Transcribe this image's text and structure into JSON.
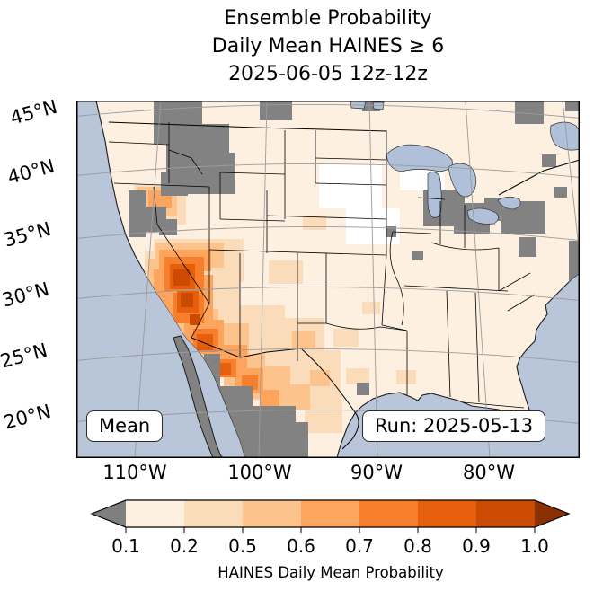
{
  "title": {
    "line1": "Ensemble Probability",
    "line2": "Daily Mean HAINES ≥ 6",
    "line3": "2025-06-05 12z-12z"
  },
  "map": {
    "lat_labels": [
      "45°N",
      "40°N",
      "35°N",
      "30°N",
      "25°N",
      "20°N"
    ],
    "lon_labels": [
      "110°W",
      "100°W",
      "90°W",
      "80°W"
    ],
    "mean_box": "Mean",
    "run_box": "Run: 2025-05-13",
    "colors": {
      "ocean": "#b9c5d9",
      "lake": "#afc0d8",
      "land": "#fdf0e1",
      "mask": "#828282",
      "gridline": "#9b9b9b"
    },
    "cells": [
      [
        86,
        154,
        100,
        48,
        2
      ],
      [
        76,
        168,
        32,
        92,
        2
      ],
      [
        100,
        198,
        82,
        88,
        2
      ],
      [
        148,
        228,
        84,
        78,
        2
      ],
      [
        180,
        268,
        78,
        66,
        2
      ],
      [
        214,
        242,
        62,
        46,
        2
      ],
      [
        236,
        278,
        58,
        58,
        2
      ],
      [
        254,
        328,
        42,
        42,
        2
      ],
      [
        64,
        94,
        58,
        44,
        2
      ],
      [
        214,
        178,
        38,
        26,
        2
      ],
      [
        286,
        254,
        28,
        20,
        2
      ],
      [
        300,
        298,
        26,
        18,
        2
      ],
      [
        252,
        128,
        26,
        16,
        2
      ],
      [
        318,
        224,
        20,
        14,
        2
      ],
      [
        356,
        300,
        22,
        16,
        2
      ],
      [
        88,
        158,
        76,
        28,
        3
      ],
      [
        80,
        176,
        26,
        58,
        3
      ],
      [
        96,
        232,
        62,
        46,
        3
      ],
      [
        140,
        248,
        52,
        44,
        3
      ],
      [
        164,
        282,
        46,
        40,
        3
      ],
      [
        196,
        296,
        42,
        36,
        3
      ],
      [
        226,
        316,
        34,
        28,
        3
      ],
      [
        68,
        96,
        44,
        32,
        3
      ],
      [
        240,
        256,
        26,
        20,
        3
      ],
      [
        260,
        300,
        22,
        18,
        3
      ],
      [
        92,
        166,
        58,
        24,
        4
      ],
      [
        86,
        188,
        22,
        44,
        4
      ],
      [
        100,
        194,
        52,
        54,
        4
      ],
      [
        120,
        244,
        44,
        38,
        4
      ],
      [
        150,
        272,
        40,
        34,
        4
      ],
      [
        176,
        298,
        32,
        28,
        4
      ],
      [
        80,
        100,
        26,
        20,
        4
      ],
      [
        204,
        322,
        22,
        18,
        4
      ],
      [
        98,
        174,
        44,
        38,
        5
      ],
      [
        108,
        214,
        34,
        34,
        5
      ],
      [
        130,
        254,
        28,
        26,
        5
      ],
      [
        154,
        288,
        24,
        20,
        5
      ],
      [
        184,
        306,
        18,
        16,
        5
      ],
      [
        104,
        182,
        28,
        28,
        6
      ],
      [
        112,
        212,
        24,
        24,
        6
      ],
      [
        134,
        260,
        18,
        18,
        6
      ],
      [
        158,
        292,
        14,
        14,
        6
      ],
      [
        108,
        188,
        18,
        18,
        7
      ],
      [
        116,
        214,
        14,
        16,
        7
      ],
      [
        126,
        238,
        12,
        12,
        7
      ],
      [
        270,
        70,
        70,
        50,
        0
      ],
      [
        300,
        120,
        60,
        40,
        0
      ],
      [
        360,
        60,
        50,
        40,
        0
      ],
      [
        86,
        0,
        54,
        48,
        8
      ],
      [
        100,
        26,
        70,
        56,
        8
      ],
      [
        124,
        58,
        52,
        46,
        8
      ],
      [
        94,
        80,
        30,
        26,
        8
      ],
      [
        204,
        0,
        36,
        22,
        8
      ],
      [
        318,
        0,
        20,
        12,
        8
      ],
      [
        488,
        0,
        32,
        26,
        8
      ],
      [
        544,
        0,
        16,
        12,
        8
      ],
      [
        58,
        100,
        20,
        52,
        8
      ],
      [
        72,
        118,
        28,
        28,
        8
      ],
      [
        92,
        132,
        20,
        18,
        8
      ],
      [
        386,
        100,
        46,
        40,
        8
      ],
      [
        420,
        114,
        40,
        34,
        8
      ],
      [
        454,
        108,
        30,
        26,
        8
      ],
      [
        472,
        112,
        50,
        36,
        8
      ],
      [
        492,
        152,
        20,
        22,
        8
      ],
      [
        548,
        156,
        12,
        58,
        8
      ],
      [
        488,
        344,
        20,
        28,
        8
      ],
      [
        312,
        314,
        14,
        14,
        8
      ],
      [
        116,
        318,
        80,
        78,
        8
      ],
      [
        150,
        358,
        108,
        40,
        8
      ],
      [
        196,
        340,
        48,
        28,
        8
      ],
      [
        142,
        282,
        18,
        38,
        8
      ],
      [
        344,
        140,
        12,
        12,
        8
      ],
      [
        374,
        168,
        12,
        10,
        8
      ],
      [
        518,
        60,
        16,
        14,
        8
      ],
      [
        532,
        96,
        14,
        12,
        8
      ]
    ]
  },
  "colorbar": {
    "ticks": [
      "0.1",
      "0.2",
      "0.5",
      "0.6",
      "0.7",
      "0.8",
      "0.9",
      "1.0"
    ],
    "label": "HAINES Daily Mean Probability",
    "segment_colors": [
      "#fdf0e1",
      "#fbdcba",
      "#fdc38d",
      "#fda55d",
      "#f77e2d",
      "#e65f0c",
      "#cb4b02"
    ],
    "under_color": "#7f7f7f",
    "over_color": "#8a3104"
  }
}
